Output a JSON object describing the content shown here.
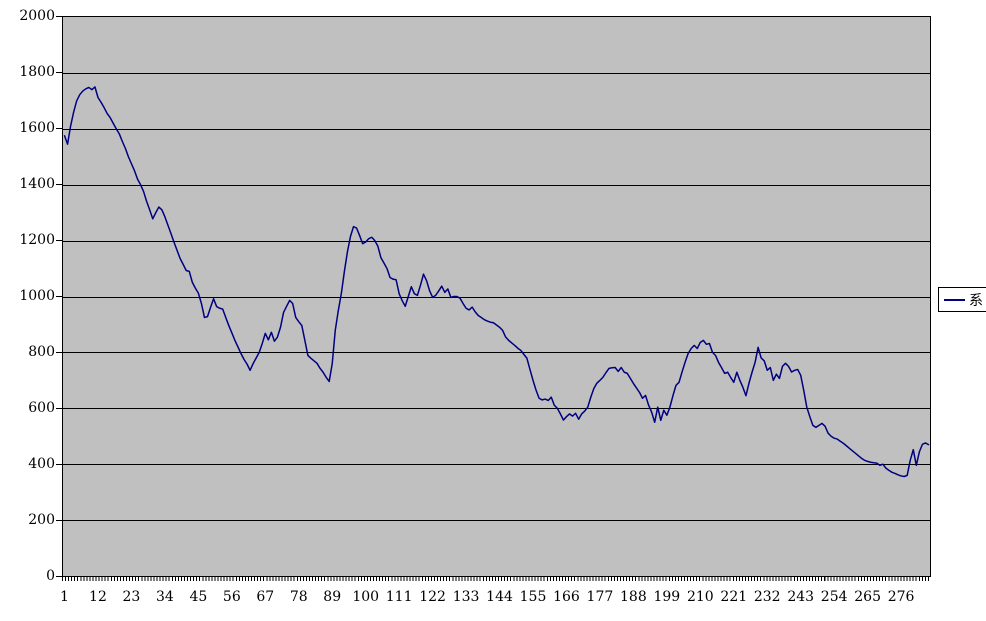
{
  "chart_data": {
    "type": "line",
    "title": "",
    "xlabel": "",
    "ylabel": "",
    "ylim": [
      0,
      2000
    ],
    "y_tick_step": 200,
    "y_ticks": [
      2000,
      1800,
      1600,
      1400,
      1200,
      1000,
      800,
      600,
      400,
      200,
      0
    ],
    "x_tick_labels": [
      1,
      12,
      23,
      34,
      45,
      56,
      67,
      78,
      89,
      100,
      111,
      122,
      133,
      144,
      155,
      166,
      177,
      188,
      199,
      210,
      221,
      232,
      243,
      254,
      265,
      276
    ],
    "n_points": 285,
    "grid": "horizontal-on",
    "legend_position": "right-middle",
    "legend_label": "系",
    "colors": {
      "plot_background": "#C0C0C0",
      "gridline": "#000000",
      "series_line": "#000080",
      "page_background": "#FFFFFF",
      "text": "#000000"
    },
    "series": [
      {
        "name": "系",
        "color": "#000080",
        "values": [
          1575,
          1545,
          1610,
          1660,
          1700,
          1722,
          1735,
          1743,
          1748,
          1740,
          1750,
          1712,
          1695,
          1676,
          1655,
          1640,
          1620,
          1600,
          1582,
          1555,
          1530,
          1500,
          1475,
          1450,
          1420,
          1400,
          1375,
          1340,
          1310,
          1278,
          1300,
          1320,
          1310,
          1285,
          1255,
          1225,
          1194,
          1165,
          1136,
          1115,
          1093,
          1090,
          1051,
          1030,
          1012,
          975,
          925,
          928,
          961,
          992,
          964,
          958,
          955,
          925,
          896,
          870,
          843,
          820,
          796,
          775,
          758,
          736,
          760,
          780,
          800,
          832,
          868,
          845,
          872,
          840,
          855,
          890,
          943,
          965,
          986,
          975,
          925,
          910,
          896,
          843,
          789,
          779,
          770,
          761,
          743,
          729,
          711,
          696,
          760,
          879,
          950,
          1011,
          1090,
          1160,
          1215,
          1250,
          1245,
          1218,
          1189,
          1195,
          1207,
          1212,
          1200,
          1180,
          1139,
          1120,
          1100,
          1068,
          1062,
          1060,
          1010,
          985,
          965,
          1000,
          1035,
          1010,
          1004,
          1040,
          1080,
          1057,
          1021,
          997,
          1004,
          1020,
          1037,
          1015,
          1027,
          997,
          1000,
          1000,
          994,
          975,
          958,
          952,
          962,
          945,
          932,
          925,
          917,
          912,
          908,
          906,
          898,
          890,
          879,
          855,
          843,
          834,
          825,
          815,
          807,
          793,
          779,
          739,
          700,
          665,
          636,
          630,
          633,
          628,
          640,
          611,
          600,
          580,
          558,
          570,
          580,
          572,
          582,
          561,
          580,
          590,
          604,
          640,
          671,
          690,
          700,
          711,
          728,
          743,
          745,
          746,
          732,
          746,
          729,
          725,
          707,
          689,
          673,
          657,
          636,
          646,
          611,
          586,
          550,
          604,
          557,
          593,
          575,
          604,
          645,
          682,
          693,
          730,
          765,
          796,
          814,
          825,
          814,
          836,
          843,
          829,
          832,
          800,
          789,
          764,
          745,
          725,
          729,
          710,
          693,
          729,
          700,
          675,
          645,
          690,
          729,
          764,
          818,
          780,
          770,
          736,
          746,
          700,
          722,
          707,
          750,
          761,
          750,
          730,
          736,
          739,
          718,
          664,
          604,
          570,
          539,
          532,
          539,
          546,
          536,
          511,
          500,
          493,
          490,
          482,
          475,
          466,
          457,
          448,
          439,
          430,
          421,
          414,
          410,
          407,
          405,
          404,
          396,
          400,
          386,
          378,
          371,
          367,
          362,
          358,
          356,
          360,
          414,
          452,
          396,
          444,
          471,
          476,
          470
        ]
      }
    ]
  }
}
